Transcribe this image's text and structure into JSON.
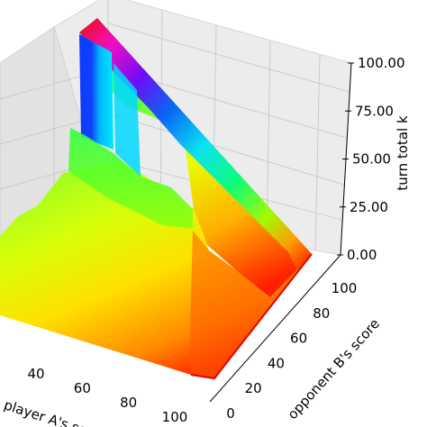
{
  "chart_data": {
    "type": "surface3d",
    "title": "",
    "xlabel": "player A's score",
    "ylabel": "opponent B's score",
    "zlabel": "turn total k",
    "x_ticks": [
      "40",
      "60",
      "80",
      "100"
    ],
    "y_ticks": [
      "0",
      "20",
      "40",
      "60",
      "80",
      "100"
    ],
    "z_ticks": [
      "0.00",
      "25.00",
      "50.00",
      "75.00",
      "100.00"
    ],
    "xlim": [
      0,
      100
    ],
    "ylim": [
      0,
      100
    ],
    "zlim": [
      0,
      100
    ],
    "colormap": "hsv (red = low, blue/magenta = high)",
    "grid": true,
    "surface_profile": {
      "note": "approximate turn total k along opponent B's score axis for player A's score near 0 (back ridge)",
      "opponent_score": [
        0,
        20,
        40,
        60,
        80,
        100
      ],
      "k": [
        100,
        80,
        60,
        40,
        20,
        0
      ]
    }
  }
}
